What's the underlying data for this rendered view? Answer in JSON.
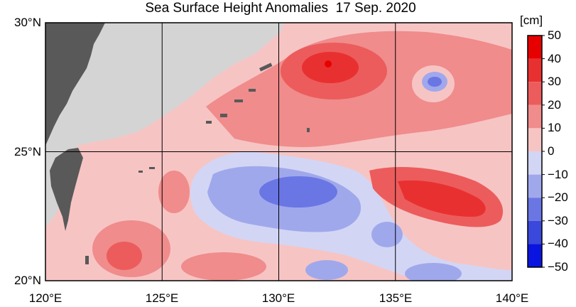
{
  "title": "Sea Surface Height Anomalies  17 Sep. 2020",
  "map": {
    "region": "Northwest Pacific (Ryukyu / Taiwan)",
    "lat_range": [
      20,
      30
    ],
    "lon_range": [
      120,
      140
    ],
    "lat_labels": [
      {
        "value": 30,
        "label": "30°N"
      },
      {
        "value": 25,
        "label": "25°N"
      },
      {
        "value": 20,
        "label": "20°N"
      }
    ],
    "lon_labels": [
      {
        "value": 120,
        "label": "120°E"
      },
      {
        "value": 125,
        "label": "125°E"
      },
      {
        "value": 130,
        "label": "130°E"
      },
      {
        "value": 135,
        "label": "135°E"
      },
      {
        "value": 140,
        "label": "140°E"
      }
    ],
    "land_color": "#595959",
    "no_data_color": "#d4d4d4",
    "grid_color": "#000000"
  },
  "colorbar": {
    "unit": "[cm]",
    "range": [
      -50,
      50
    ],
    "tick_labels": [
      {
        "value": 50,
        "label": "50"
      },
      {
        "value": 40,
        "label": "40"
      },
      {
        "value": 30,
        "label": "30"
      },
      {
        "value": 20,
        "label": "20"
      },
      {
        "value": 10,
        "label": "10"
      },
      {
        "value": 0,
        "label": "0"
      },
      {
        "value": -10,
        "label": "−10"
      },
      {
        "value": -20,
        "label": "−20"
      },
      {
        "value": -30,
        "label": "−30"
      },
      {
        "value": -40,
        "label": "−40"
      },
      {
        "value": -50,
        "label": "−50"
      }
    ],
    "bands": [
      {
        "from": 40,
        "to": 50,
        "color": "#e60000"
      },
      {
        "from": 30,
        "to": 40,
        "color": "#e93030"
      },
      {
        "from": 20,
        "to": 30,
        "color": "#ec5c5c"
      },
      {
        "from": 10,
        "to": 20,
        "color": "#f08c8c"
      },
      {
        "from": 0,
        "to": 10,
        "color": "#f7c4c4"
      },
      {
        "from": -10,
        "to": 0,
        "color": "#d2d6f4"
      },
      {
        "from": -20,
        "to": -10,
        "color": "#a0a8ec"
      },
      {
        "from": -30,
        "to": -20,
        "color": "#6a76e4"
      },
      {
        "from": -40,
        "to": -30,
        "color": "#3a48dc"
      },
      {
        "from": -50,
        "to": -40,
        "color": "#0a14e0"
      }
    ]
  }
}
